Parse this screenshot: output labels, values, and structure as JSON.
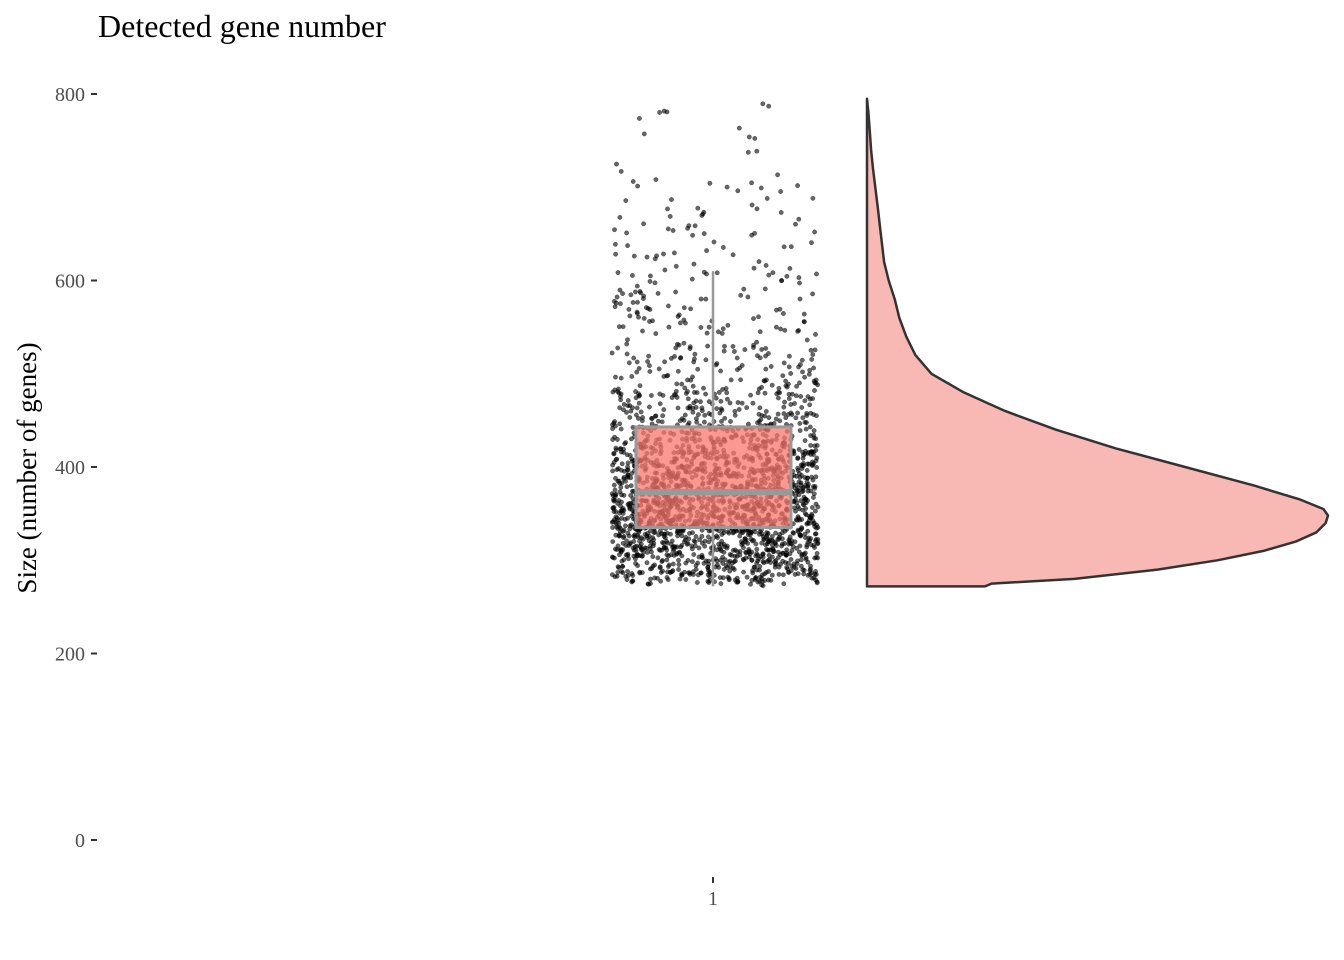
{
  "chart_data": {
    "type": "raincloud",
    "title": "Detected gene number",
    "xlabel": "",
    "ylabel": "Size (number of genes)",
    "categories": [
      "1"
    ],
    "y_ticks": [
      0,
      200,
      400,
      600,
      800
    ],
    "ylim": [
      0,
      800
    ],
    "grid": false,
    "legend": "none",
    "boxplot": {
      "category": "1",
      "whisker_low": 272,
      "q1": 335,
      "median": 373,
      "q3": 443,
      "whisker_high": 610,
      "fill": "#f8766d",
      "line_color": "#999999"
    },
    "density": {
      "min": 272,
      "max": 795,
      "mode": 348,
      "profile": [
        [
          272,
          0.0
        ],
        [
          275,
          0.27
        ],
        [
          280,
          0.45
        ],
        [
          290,
          0.63
        ],
        [
          300,
          0.76
        ],
        [
          310,
          0.86
        ],
        [
          320,
          0.93
        ],
        [
          330,
          0.975
        ],
        [
          340,
          0.995
        ],
        [
          348,
          1.0
        ],
        [
          355,
          0.99
        ],
        [
          365,
          0.94
        ],
        [
          380,
          0.84
        ],
        [
          400,
          0.69
        ],
        [
          420,
          0.54
        ],
        [
          440,
          0.41
        ],
        [
          460,
          0.3
        ],
        [
          480,
          0.21
        ],
        [
          500,
          0.14
        ],
        [
          520,
          0.105
        ],
        [
          540,
          0.085
        ],
        [
          560,
          0.07
        ],
        [
          580,
          0.06
        ],
        [
          600,
          0.047
        ],
        [
          620,
          0.037
        ],
        [
          650,
          0.03
        ],
        [
          680,
          0.023
        ],
        [
          700,
          0.018
        ],
        [
          720,
          0.013
        ],
        [
          740,
          0.009
        ],
        [
          760,
          0.006
        ],
        [
          780,
          0.003
        ],
        [
          795,
          0.0
        ]
      ],
      "fill": "#f8b8b3",
      "line_color": "#333333"
    },
    "points": {
      "color": "#000000",
      "opacity": 0.6
    }
  }
}
